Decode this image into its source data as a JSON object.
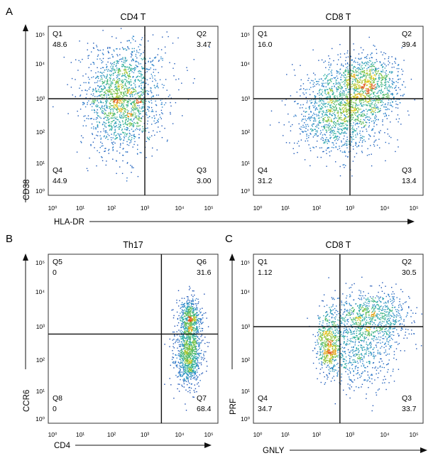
{
  "figure": {
    "panel_letters": [
      "A",
      "B",
      "C"
    ]
  },
  "axis_labels": {
    "A": {
      "x": "HLA-DR",
      "y": "CD38"
    },
    "B": {
      "x": "CD4",
      "y": "CCR6"
    },
    "C": {
      "x": "GNLY",
      "y": "PRF"
    }
  },
  "chart_data": [
    {
      "type": "scatter",
      "panel": "A",
      "title": "CD4 T",
      "xscale": "log",
      "yscale": "log",
      "xlim": [
        0,
        100000
      ],
      "ylim": [
        0,
        100000
      ],
      "x_ticks": [
        "10⁰",
        "10¹",
        "10²",
        "10³",
        "10⁴",
        "10⁵"
      ],
      "y_ticks": [
        "10⁰",
        "10¹",
        "10²",
        "10³",
        "10⁴",
        "10⁵"
      ],
      "gate": {
        "x": 1000,
        "y": 1000
      },
      "quadrants": [
        {
          "name": "Q1",
          "value": "48.6"
        },
        {
          "name": "Q2",
          "value": "3.47"
        },
        {
          "name": "Q3",
          "value": "3.00"
        },
        {
          "name": "Q4",
          "value": "44.9"
        }
      ],
      "populations": [
        {
          "cx": 2.3,
          "cy": 2.9,
          "sx": 0.55,
          "sy": 0.75,
          "n": 1400
        },
        {
          "cx": 2.5,
          "cy": 3.6,
          "sx": 0.8,
          "sy": 0.7,
          "n": 350
        }
      ]
    },
    {
      "type": "scatter",
      "panel": "A",
      "title": "CD8 T",
      "xscale": "log",
      "yscale": "log",
      "xlim": [
        0,
        100000
      ],
      "ylim": [
        0,
        100000
      ],
      "x_ticks": [
        "10⁰",
        "10¹",
        "10²",
        "10³",
        "10⁴",
        "10⁵"
      ],
      "y_ticks": [
        "10⁰",
        "10¹",
        "10²",
        "10³",
        "10⁴",
        "10⁵"
      ],
      "gate": {
        "x": 1000,
        "y": 1000
      },
      "quadrants": [
        {
          "name": "Q1",
          "value": "16.0"
        },
        {
          "name": "Q2",
          "value": "39.4"
        },
        {
          "name": "Q3",
          "value": "13.4"
        },
        {
          "name": "Q4",
          "value": "31.2"
        }
      ],
      "populations": [
        {
          "cx": 2.5,
          "cy": 2.6,
          "sx": 0.6,
          "sy": 0.6,
          "n": 900
        },
        {
          "cx": 3.4,
          "cy": 3.4,
          "sx": 0.55,
          "sy": 0.45,
          "n": 1100
        },
        {
          "cx": 3.0,
          "cy": 2.3,
          "sx": 0.55,
          "sy": 0.6,
          "n": 300
        }
      ]
    },
    {
      "type": "scatter",
      "panel": "B",
      "title": "Th17",
      "xscale": "log",
      "yscale": "log",
      "xlim": [
        0,
        100000
      ],
      "ylim": [
        0,
        100000
      ],
      "x_ticks": [
        "10⁰",
        "10¹",
        "10²",
        "10³",
        "10⁴",
        "10⁵"
      ],
      "y_ticks": [
        "10⁰",
        "10¹",
        "10²",
        "10³",
        "10⁴",
        "10⁵"
      ],
      "gate": {
        "x": 3000,
        "y": 600
      },
      "quadrants": [
        {
          "name": "Q5",
          "value": "0"
        },
        {
          "name": "Q6",
          "value": "31.6"
        },
        {
          "name": "Q7",
          "value": "68.4"
        },
        {
          "name": "Q8",
          "value": "0"
        }
      ],
      "populations": [
        {
          "cx": 4.35,
          "cy": 3.25,
          "sx": 0.2,
          "sy": 0.3,
          "n": 500
        },
        {
          "cx": 4.3,
          "cy": 2.2,
          "sx": 0.22,
          "sy": 0.5,
          "n": 1000
        }
      ]
    },
    {
      "type": "scatter",
      "panel": "C",
      "title": "CD8 T",
      "xscale": "log",
      "yscale": "log",
      "xlim": [
        0,
        100000
      ],
      "ylim": [
        0,
        100000
      ],
      "x_ticks": [
        "10⁰",
        "10¹",
        "10²",
        "10³",
        "10⁴",
        "10⁵"
      ],
      "y_ticks": [
        "10⁰",
        "10¹",
        "10²",
        "10³",
        "10⁴",
        "10⁵"
      ],
      "gate": {
        "x": 500,
        "y": 1000
      },
      "quadrants": [
        {
          "name": "Q1",
          "value": "1.12"
        },
        {
          "name": "Q2",
          "value": "30.5"
        },
        {
          "name": "Q3",
          "value": "33.7"
        },
        {
          "name": "Q4",
          "value": "34.7"
        }
      ],
      "populations": [
        {
          "cx": 2.35,
          "cy": 2.5,
          "sx": 0.18,
          "sy": 0.45,
          "n": 550
        },
        {
          "cx": 3.6,
          "cy": 3.3,
          "sx": 0.6,
          "sy": 0.4,
          "n": 800
        },
        {
          "cx": 3.3,
          "cy": 2.3,
          "sx": 0.5,
          "sy": 0.6,
          "n": 550
        }
      ]
    }
  ]
}
